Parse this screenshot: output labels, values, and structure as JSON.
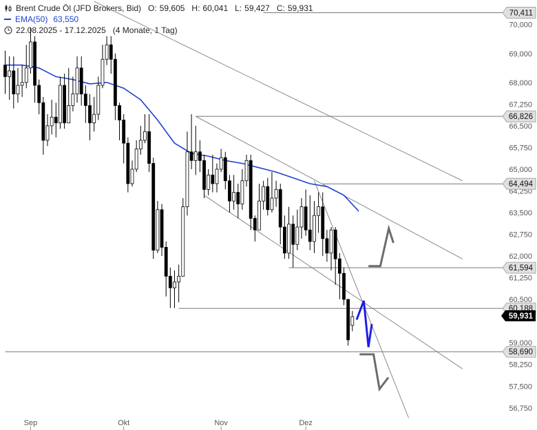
{
  "legend": {
    "instrument": "Brent Crude Öl (JFD Brokers, Bid)",
    "open_label": "O:",
    "open_value": "59,605",
    "high_label": "H:",
    "high_value": "60,041",
    "low_label": "L:",
    "low_value": "59,427",
    "close_label": "C:",
    "close_value": "59,931",
    "ema_name": "EMA(50)",
    "ema_value": "63,550",
    "range": "22.08.2025 - 17.12.2025",
    "range_info": "(4 Monate, 1 Tag)",
    "instrument_icon": "candlestick-icon",
    "range_icon": "clock-icon"
  },
  "colors": {
    "ema": "#1f3fd1",
    "candle_down": "#000000",
    "candle_up": "#ffffff",
    "trendline": "#888888",
    "level_line": "#777777",
    "level_label_bg": "#e0e0e0",
    "price_label_bg": "#000000",
    "projection_blue": "#1f1fe0",
    "projection_gray": "#6b6b6b"
  },
  "chart_data": {
    "type": "candlestick",
    "ylim": [
      56.4,
      70.6
    ],
    "xlim": [
      0,
      108
    ],
    "y_ticks": [
      "70,000",
      "69,000",
      "68,000",
      "67,250",
      "66,500",
      "65,750",
      "65,000",
      "64,250",
      "63,500",
      "62,750",
      "62,000",
      "61,250",
      "60,500",
      "59,000",
      "58,250",
      "57,500",
      "56,750"
    ],
    "x_ticks": [
      {
        "label": "Sep",
        "x": 6
      },
      {
        "label": "Okt",
        "x": 28
      },
      {
        "label": "Nov",
        "x": 51
      },
      {
        "label": "Dez",
        "x": 71
      }
    ],
    "levels": [
      {
        "label": "70,411",
        "value": 70.411,
        "x_from": 61
      },
      {
        "label": "66,826",
        "value": 66.826,
        "x_from": 45
      },
      {
        "label": "64,494",
        "value": 64.494,
        "x_from": 75
      },
      {
        "label": "61,594",
        "value": 61.594,
        "x_from": 67
      },
      {
        "label": "60,188",
        "value": 60.188,
        "x_from": 41
      },
      {
        "label": "58,690",
        "value": 58.69,
        "x_from": 0
      }
    ],
    "last_price": {
      "label": "59,931",
      "value": 59.931
    },
    "trendlines": [
      {
        "x1": 21,
        "y1": 70.8,
        "x2": 108,
        "y2": 64.6
      },
      {
        "x1": 45,
        "y1": 66.83,
        "x2": 108,
        "y2": 61.9
      },
      {
        "x1": 47,
        "y1": 64.1,
        "x2": 108,
        "y2": 58.1
      },
      {
        "x1": 73,
        "y1": 64.6,
        "x2": 95.3,
        "y2": 56.4
      }
    ],
    "projections": [
      {
        "series": "blue",
        "points": [
          [
            83,
            59.8
          ],
          [
            84.7,
            60.45
          ],
          [
            85.8,
            58.85
          ],
          [
            86.6,
            59.65
          ]
        ]
      },
      {
        "series": "gray-up",
        "points": [
          [
            85.8,
            61.65
          ],
          [
            88.6,
            61.65
          ],
          [
            90.6,
            62.95
          ],
          [
            91.7,
            62.45
          ]
        ]
      },
      {
        "series": "gray-down",
        "points": [
          [
            83.7,
            58.6
          ],
          [
            87,
            58.6
          ],
          [
            88.4,
            57.4
          ],
          [
            90.5,
            57.8
          ]
        ]
      }
    ],
    "ema": [
      [
        0,
        68.6
      ],
      [
        4,
        68.6
      ],
      [
        8,
        68.5
      ],
      [
        12,
        68.2
      ],
      [
        16,
        68.1
      ],
      [
        20,
        67.95
      ],
      [
        24,
        68.0
      ],
      [
        28,
        67.8
      ],
      [
        32,
        67.4
      ],
      [
        36,
        66.7
      ],
      [
        40,
        65.9
      ],
      [
        44,
        65.55
      ],
      [
        48,
        65.45
      ],
      [
        52,
        65.3
      ],
      [
        56,
        65.2
      ],
      [
        60,
        65.05
      ],
      [
        64,
        64.9
      ],
      [
        68,
        64.7
      ],
      [
        72,
        64.5
      ],
      [
        76,
        64.4
      ],
      [
        80,
        64.1
      ],
      [
        83.5,
        63.55
      ]
    ],
    "candles": [
      [
        0,
        68.6,
        68.2,
        69.1,
        67.6
      ],
      [
        1,
        68.2,
        68.4,
        68.9,
        67.4
      ],
      [
        2,
        68.4,
        67.6,
        68.9,
        67.1
      ],
      [
        3,
        67.6,
        67.9,
        68.5,
        67.3
      ],
      [
        4,
        67.9,
        68.0,
        68.6,
        67.5
      ],
      [
        5,
        68.0,
        68.5,
        69.3,
        67.8
      ],
      [
        6,
        68.5,
        69.4,
        69.9,
        68.3
      ],
      [
        7,
        69.4,
        67.9,
        69.6,
        67.3
      ],
      [
        8,
        67.9,
        67.3,
        68.1,
        66.9
      ],
      [
        9,
        67.3,
        66.0,
        67.5,
        65.5
      ],
      [
        10,
        66.0,
        66.5,
        66.9,
        65.8
      ],
      [
        11,
        66.5,
        66.8,
        67.4,
        66.2
      ],
      [
        12,
        66.8,
        66.6,
        67.3,
        66.1
      ],
      [
        13,
        66.6,
        67.9,
        68.2,
        66.4
      ],
      [
        14,
        67.9,
        66.6,
        68.3,
        66.4
      ],
      [
        15,
        66.6,
        67.2,
        68.5,
        66.8
      ],
      [
        16,
        67.2,
        67.6,
        68.2,
        67.0
      ],
      [
        17,
        67.6,
        68.5,
        68.9,
        67.3
      ],
      [
        18,
        68.5,
        67.6,
        68.9,
        67.2
      ],
      [
        19,
        67.6,
        67.2,
        67.9,
        66.6
      ],
      [
        20,
        67.2,
        66.6,
        67.6,
        66.0
      ],
      [
        21,
        66.6,
        66.9,
        67.5,
        66.3
      ],
      [
        22,
        66.9,
        67.9,
        68.2,
        66.7
      ],
      [
        23,
        67.9,
        68.8,
        69.3,
        67.8
      ],
      [
        24,
        68.8,
        69.3,
        69.6,
        68.6
      ],
      [
        25,
        69.3,
        68.8,
        69.6,
        68.3
      ],
      [
        26,
        68.8,
        67.2,
        69.0,
        66.7
      ],
      [
        27,
        67.2,
        66.7,
        67.3,
        66.0
      ],
      [
        28,
        66.7,
        65.9,
        66.9,
        65.2
      ],
      [
        29,
        65.9,
        64.5,
        66.1,
        64.2
      ],
      [
        30,
        64.5,
        65.0,
        65.3,
        64.4
      ],
      [
        31,
        65.0,
        65.7,
        66.0,
        64.9
      ],
      [
        32,
        65.7,
        66.0,
        66.5,
        65.5
      ],
      [
        33,
        66.0,
        66.3,
        66.9,
        65.9
      ],
      [
        34,
        66.3,
        65.2,
        66.9,
        64.9
      ],
      [
        35,
        65.2,
        62.2,
        65.4,
        61.9
      ],
      [
        36,
        62.2,
        63.6,
        63.9,
        62.1
      ],
      [
        37,
        63.6,
        62.3,
        63.8,
        62.0
      ],
      [
        38,
        62.3,
        61.3,
        62.5,
        60.6
      ],
      [
        39,
        61.3,
        60.9,
        61.6,
        60.2
      ],
      [
        40,
        60.9,
        61.1,
        61.5,
        60.2
      ],
      [
        41,
        61.1,
        61.3,
        61.7,
        60.4
      ],
      [
        42,
        61.3,
        63.7,
        64.0,
        61.3
      ],
      [
        43,
        63.7,
        65.6,
        66.3,
        63.4
      ],
      [
        44,
        65.6,
        65.3,
        66.9,
        65.0
      ],
      [
        45,
        65.3,
        65.6,
        66.5,
        64.8
      ],
      [
        46,
        65.6,
        65.3,
        66.0,
        64.9
      ],
      [
        47,
        65.3,
        64.3,
        65.5,
        64.0
      ],
      [
        48,
        64.3,
        64.8,
        65.0,
        64.1
      ],
      [
        49,
        64.8,
        64.5,
        65.5,
        64.2
      ],
      [
        50,
        64.5,
        65.0,
        65.2,
        64.2
      ],
      [
        51,
        65.0,
        65.4,
        65.7,
        64.9
      ],
      [
        52,
        65.4,
        64.6,
        65.6,
        64.3
      ],
      [
        53,
        64.6,
        63.9,
        64.8,
        63.5
      ],
      [
        54,
        63.9,
        64.2,
        64.8,
        63.6
      ],
      [
        55,
        64.2,
        63.8,
        64.5,
        63.3
      ],
      [
        56,
        63.8,
        64.6,
        65.0,
        63.6
      ],
      [
        57,
        64.6,
        65.3,
        65.5,
        64.4
      ],
      [
        58,
        65.3,
        63.3,
        65.5,
        62.9
      ],
      [
        59,
        63.3,
        62.9,
        63.4,
        62.5
      ],
      [
        60,
        62.9,
        63.9,
        64.5,
        63.8
      ],
      [
        61,
        63.9,
        64.4,
        64.6,
        63.6
      ],
      [
        62,
        64.4,
        63.6,
        64.7,
        63.4
      ],
      [
        63,
        63.6,
        64.0,
        64.9,
        63.5
      ],
      [
        64,
        64.0,
        64.3,
        64.6,
        63.7
      ],
      [
        65,
        64.3,
        63.0,
        64.5,
        62.4
      ],
      [
        66,
        63.0,
        62.1,
        63.4,
        61.9
      ],
      [
        67,
        62.1,
        63.1,
        63.7,
        61.9
      ],
      [
        68,
        63.1,
        62.4,
        63.4,
        61.6
      ],
      [
        69,
        62.4,
        63.0,
        63.6,
        62.2
      ],
      [
        70,
        63.0,
        63.7,
        64.0,
        62.6
      ],
      [
        71,
        63.7,
        62.9,
        64.3,
        62.7
      ],
      [
        72,
        62.9,
        62.5,
        64.1,
        62.2
      ],
      [
        73,
        62.5,
        63.4,
        63.9,
        62.1
      ],
      [
        74,
        63.4,
        63.7,
        64.2,
        62.8
      ],
      [
        75,
        63.7,
        62.6,
        64.2,
        62.0
      ],
      [
        76,
        62.6,
        62.1,
        62.9,
        61.8
      ],
      [
        77,
        62.1,
        62.9,
        63.0,
        61.5
      ],
      [
        78,
        62.9,
        61.9,
        63.0,
        61.0
      ],
      [
        79,
        61.9,
        61.4,
        62.1,
        60.5
      ],
      [
        80,
        61.4,
        60.5,
        61.6,
        60.3
      ],
      [
        81,
        60.5,
        59.1,
        60.5,
        58.9
      ],
      [
        82,
        59.6,
        59.9,
        60.1,
        59.4
      ]
    ]
  }
}
